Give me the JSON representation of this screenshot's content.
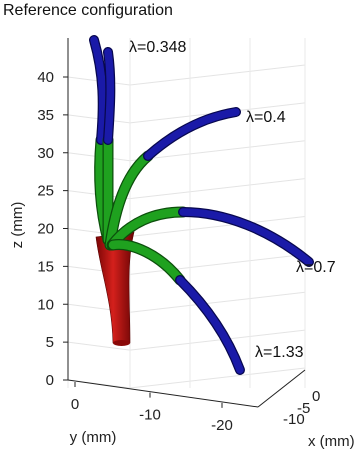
{
  "title": "Reference configuration",
  "chart_data": {
    "type": "3d-curves",
    "title": "Reference configuration",
    "zlabel": "z (mm)",
    "ylabel": "y (mm)",
    "xlabel": "x (mm)",
    "z_ticks": [
      "0",
      "5",
      "10",
      "15",
      "20",
      "25",
      "30",
      "35",
      "40"
    ],
    "y_ticks": [
      "0",
      "-10",
      "-20"
    ],
    "x_ticks": [
      "0",
      "-5",
      "-10"
    ],
    "zlim": [
      0,
      43
    ],
    "grid": true,
    "segment_colors": {
      "base": "#c0100e",
      "middle": "#1fa11f",
      "tip": "#1a1aa8"
    },
    "annotations": [
      {
        "text": "λ=0.348"
      },
      {
        "text": "λ=0.4"
      },
      {
        "text": "λ=0.7"
      },
      {
        "text": "λ=1.33"
      }
    ]
  }
}
